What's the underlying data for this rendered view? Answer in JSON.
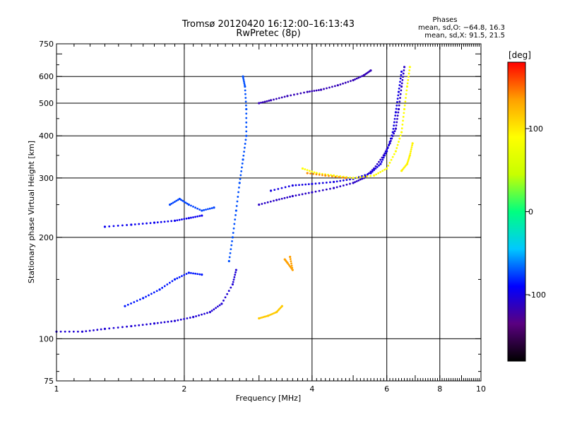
{
  "title": "Tromsø 20120420 16:12:00–16:13:43",
  "subtitle": "RwPretec (8p)",
  "phases": {
    "heading": "Phases",
    "line_o": "mean, sd,O: −64.8, 16.3",
    "line_x": "mean, sd,X:  91.5, 21.5"
  },
  "colorbar": {
    "unit": "[deg]",
    "ticks": [
      100,
      0,
      -100
    ],
    "min": -180,
    "max": 180,
    "colors": [
      "#000000",
      "#5a0080",
      "#0000ff",
      "#00c8ff",
      "#00ff80",
      "#c8ff00",
      "#ffff00",
      "#ffa000",
      "#ff0000"
    ]
  },
  "chart_data": {
    "type": "scatter",
    "title": "Tromsø 20120420 16:12:00–16:13:43",
    "subtitle": "RwPretec (8p)",
    "xlabel": "Frequency [MHz]",
    "ylabel": "Stationary phase Virtual Height [km]",
    "x_scale": "log",
    "y_scale": "log",
    "xlim": [
      1,
      10
    ],
    "ylim": [
      75,
      750
    ],
    "x_ticks": [
      1,
      2,
      4,
      6,
      8,
      10
    ],
    "y_ticks": [
      75,
      100,
      200,
      300,
      400,
      500,
      600,
      750
    ],
    "grid": true,
    "color_by": "phase [deg]",
    "traces": [
      {
        "phase": -105,
        "points": [
          [
            1.0,
            105
          ],
          [
            1.15,
            105
          ],
          [
            1.3,
            107
          ],
          [
            1.5,
            109
          ],
          [
            1.7,
            111
          ],
          [
            1.9,
            113
          ],
          [
            2.1,
            116
          ],
          [
            2.3,
            120
          ],
          [
            2.45,
            127
          ],
          [
            2.6,
            145
          ],
          [
            2.65,
            160
          ]
        ]
      },
      {
        "phase": -95,
        "points": [
          [
            1.3,
            215
          ],
          [
            1.5,
            218
          ],
          [
            1.7,
            221
          ],
          [
            1.9,
            224
          ],
          [
            2.05,
            228
          ],
          [
            2.2,
            232
          ]
        ]
      },
      {
        "phase": -85,
        "points": [
          [
            1.45,
            125
          ],
          [
            1.6,
            132
          ],
          [
            1.75,
            140
          ],
          [
            1.9,
            150
          ],
          [
            2.05,
            157
          ],
          [
            2.2,
            155
          ]
        ]
      },
      {
        "phase": -75,
        "points": [
          [
            1.85,
            250
          ],
          [
            1.95,
            260
          ],
          [
            2.05,
            250
          ],
          [
            2.2,
            240
          ],
          [
            2.35,
            245
          ]
        ]
      },
      {
        "phase": -72,
        "points": [
          [
            2.55,
            170
          ],
          [
            2.6,
            200
          ],
          [
            2.65,
            240
          ],
          [
            2.7,
            290
          ],
          [
            2.75,
            340
          ],
          [
            2.8,
            400
          ],
          [
            2.8,
            480
          ],
          [
            2.78,
            560
          ],
          [
            2.75,
            600
          ]
        ]
      },
      {
        "phase": -110,
        "points": [
          [
            3.0,
            250
          ],
          [
            3.3,
            258
          ],
          [
            3.6,
            265
          ],
          [
            4.0,
            272
          ],
          [
            4.5,
            280
          ],
          [
            5.0,
            290
          ],
          [
            5.3,
            300
          ],
          [
            5.6,
            320
          ],
          [
            5.9,
            350
          ],
          [
            6.1,
            380
          ],
          [
            6.3,
            420
          ],
          [
            6.4,
            480
          ],
          [
            6.5,
            560
          ],
          [
            6.6,
            640
          ]
        ]
      },
      {
        "phase": -100,
        "points": [
          [
            3.2,
            275
          ],
          [
            3.6,
            285
          ],
          [
            4.0,
            288
          ],
          [
            4.5,
            292
          ],
          [
            5.0,
            298
          ],
          [
            5.5,
            310
          ],
          [
            5.8,
            330
          ],
          [
            6.0,
            360
          ],
          [
            6.2,
            410
          ],
          [
            6.3,
            470
          ],
          [
            6.4,
            540
          ],
          [
            6.5,
            620
          ]
        ]
      },
      {
        "phase": -115,
        "points": [
          [
            3.0,
            500
          ],
          [
            3.2,
            510
          ],
          [
            3.5,
            525
          ],
          [
            3.9,
            540
          ],
          [
            4.2,
            548
          ],
          [
            4.6,
            565
          ],
          [
            5.0,
            585
          ],
          [
            5.3,
            605
          ],
          [
            5.5,
            625
          ]
        ]
      },
      {
        "phase": 90,
        "points": [
          [
            3.8,
            320
          ],
          [
            4.1,
            310
          ],
          [
            4.5,
            305
          ],
          [
            5.0,
            300
          ],
          [
            5.6,
            305
          ],
          [
            6.0,
            320
          ],
          [
            6.3,
            360
          ],
          [
            6.5,
            410
          ],
          [
            6.6,
            480
          ],
          [
            6.7,
            560
          ],
          [
            6.8,
            640
          ]
        ]
      },
      {
        "phase": 140,
        "points": [
          [
            3.9,
            310
          ],
          [
            4.3,
            305
          ],
          [
            4.8,
            300
          ]
        ]
      },
      {
        "phase": 115,
        "points": [
          [
            3.0,
            115
          ],
          [
            3.15,
            117
          ],
          [
            3.3,
            120
          ],
          [
            3.4,
            125
          ]
        ]
      },
      {
        "phase": 135,
        "points": [
          [
            3.45,
            172
          ],
          [
            3.5,
            168
          ],
          [
            3.6,
            160
          ],
          [
            3.55,
            175
          ]
        ]
      },
      {
        "phase": 95,
        "points": [
          [
            6.9,
            380
          ],
          [
            6.8,
            350
          ],
          [
            6.7,
            330
          ],
          [
            6.5,
            315
          ]
        ]
      }
    ]
  }
}
